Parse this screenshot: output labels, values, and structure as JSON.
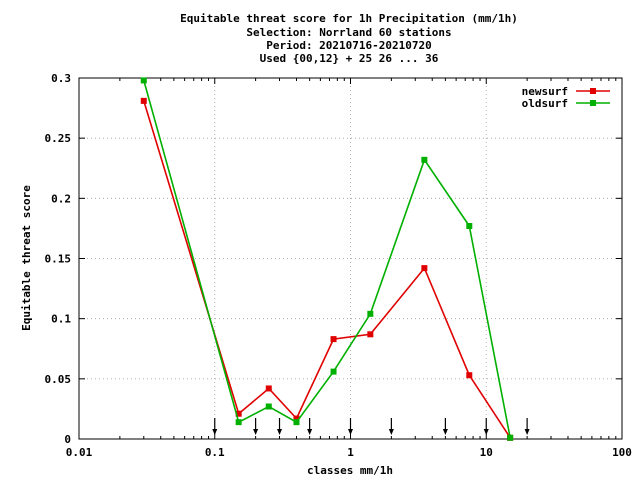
{
  "chart_data": {
    "type": "line",
    "title_lines": [
      "Equitable threat score  for 1h Precipitation (mm/1h)",
      "Selection: Norrland     60 stations",
      "Period: 20210716-20210720",
      "Used {00,12} + 25 26 ... 36"
    ],
    "xlabel": "classes mm/1h",
    "ylabel": "Equitable threat score",
    "x_scale": "log",
    "xlim": [
      0.01,
      100
    ],
    "ylim": [
      0,
      0.3
    ],
    "x_ticks": [
      {
        "value": 0.01,
        "label": "0.01"
      },
      {
        "value": 0.1,
        "label": "0.1"
      },
      {
        "value": 1,
        "label": "1"
      },
      {
        "value": 10,
        "label": "10"
      },
      {
        "value": 100,
        "label": "100"
      }
    ],
    "y_ticks": [
      {
        "value": 0,
        "label": "0"
      },
      {
        "value": 0.05,
        "label": "0.05"
      },
      {
        "value": 0.1,
        "label": "0.1"
      },
      {
        "value": 0.15,
        "label": "0.15"
      },
      {
        "value": 0.2,
        "label": "0.2"
      },
      {
        "value": 0.25,
        "label": "0.25"
      },
      {
        "value": 0.3,
        "label": "0.3"
      }
    ],
    "grid": true,
    "legend_position": "top-right",
    "threshold_markers": [
      0.1,
      0.2,
      0.3,
      0.5,
      1,
      2,
      5,
      10,
      20
    ],
    "series": [
      {
        "name": "newsurf",
        "color": "#e00000",
        "x": [
          0.03,
          0.15,
          0.25,
          0.4,
          0.75,
          1.4,
          3.5,
          7.5,
          15
        ],
        "y": [
          0.281,
          0.021,
          0.042,
          0.017,
          0.083,
          0.087,
          0.142,
          0.053,
          0.001
        ]
      },
      {
        "name": "oldsurf",
        "color": "#00b000",
        "x": [
          0.03,
          0.15,
          0.25,
          0.4,
          0.75,
          1.4,
          3.5,
          7.5,
          15
        ],
        "y": [
          0.298,
          0.014,
          0.027,
          0.014,
          0.056,
          0.104,
          0.232,
          0.177,
          0.001
        ]
      }
    ]
  }
}
